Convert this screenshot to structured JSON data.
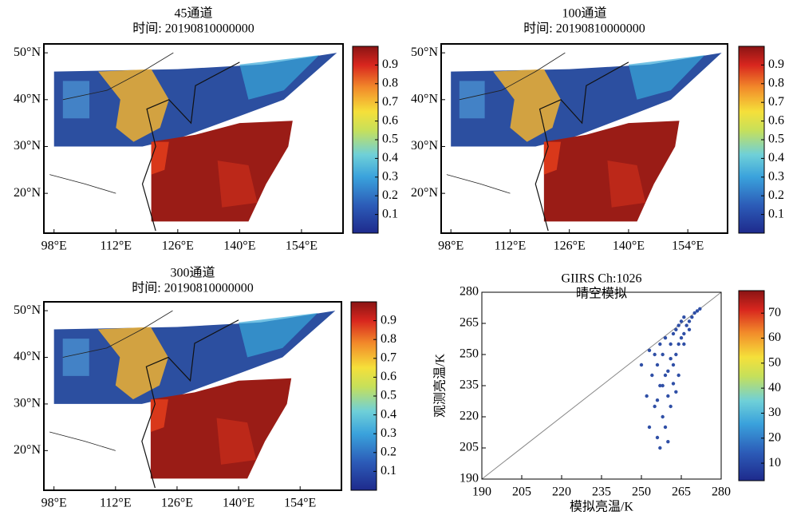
{
  "chart_data": [
    {
      "type": "map",
      "title": "45通道",
      "subtitle": "时间: 20190810000000",
      "xlim": [
        95.7,
        163.4
      ],
      "ylim": [
        11.5,
        51.9
      ],
      "xticks": [
        {
          "value": 98,
          "label": "98°E"
        },
        {
          "value": 112,
          "label": "112°E"
        },
        {
          "value": 126,
          "label": "126°E"
        },
        {
          "value": 140,
          "label": "140°E"
        },
        {
          "value": 154,
          "label": "154°E"
        }
      ],
      "yticks": [
        {
          "value": 20,
          "label": "20°N"
        },
        {
          "value": 30,
          "label": "30°N"
        },
        {
          "value": 40,
          "label": "40°N"
        },
        {
          "value": 50,
          "label": "50°N"
        }
      ],
      "clim": [
        0,
        1
      ],
      "cticks": [
        0.1,
        0.2,
        0.3,
        0.4,
        0.5,
        0.6,
        0.7,
        0.8,
        0.9
      ]
    },
    {
      "type": "map",
      "title": "100通道",
      "subtitle": "时间: 20190810000000",
      "xlim": [
        95.7,
        163.4
      ],
      "ylim": [
        11.5,
        51.9
      ],
      "xticks": [
        {
          "value": 98,
          "label": "98°E"
        },
        {
          "value": 112,
          "label": "112°E"
        },
        {
          "value": 126,
          "label": "126°E"
        },
        {
          "value": 140,
          "label": "140°E"
        },
        {
          "value": 154,
          "label": "154°E"
        }
      ],
      "yticks": [
        {
          "value": 20,
          "label": "20°N"
        },
        {
          "value": 30,
          "label": "30°N"
        },
        {
          "value": 40,
          "label": "40°N"
        },
        {
          "value": 50,
          "label": "50°N"
        }
      ],
      "clim": [
        0,
        1
      ],
      "cticks": [
        0.1,
        0.2,
        0.3,
        0.4,
        0.5,
        0.6,
        0.7,
        0.8,
        0.9
      ]
    },
    {
      "type": "map",
      "title": "300通道",
      "subtitle": "时间: 20190810000000",
      "xlim": [
        95.7,
        163.4
      ],
      "ylim": [
        11.5,
        51.9
      ],
      "xticks": [
        {
          "value": 98,
          "label": "98°E"
        },
        {
          "value": 112,
          "label": "112°E"
        },
        {
          "value": 126,
          "label": "126°E"
        },
        {
          "value": 140,
          "label": "140°E"
        },
        {
          "value": 154,
          "label": "154°E"
        }
      ],
      "yticks": [
        {
          "value": 20,
          "label": "20°N"
        },
        {
          "value": 30,
          "label": "30°N"
        },
        {
          "value": 40,
          "label": "40°N"
        },
        {
          "value": 50,
          "label": "50°N"
        }
      ],
      "clim": [
        0,
        1
      ],
      "cticks": [
        0.1,
        0.2,
        0.3,
        0.4,
        0.5,
        0.6,
        0.7,
        0.8,
        0.9
      ]
    },
    {
      "type": "scatter",
      "title": "GIIRS Ch:1026",
      "subtitle": "晴空模拟",
      "xlabel": "模拟亮温/K",
      "ylabel": "观测亮温/K",
      "color": "#2f4fa6",
      "xlim": [
        190,
        280
      ],
      "ylim": [
        190,
        280
      ],
      "xticks": [
        190,
        205,
        220,
        235,
        250,
        265,
        280
      ],
      "yticks": [
        190,
        205,
        220,
        235,
        250,
        265,
        280
      ],
      "clim": [
        3,
        79
      ],
      "cticks": [
        10,
        20,
        30,
        40,
        50,
        60,
        70
      ],
      "x": [
        252,
        253,
        254,
        255,
        256,
        256,
        257,
        257,
        258,
        258,
        259,
        259,
        260,
        260,
        261,
        261,
        262,
        262,
        263,
        263,
        264,
        264,
        265,
        265,
        266,
        266,
        267,
        268,
        269,
        270,
        271,
        272,
        255,
        257,
        259,
        261,
        258,
        260,
        262,
        264,
        250,
        253,
        256,
        263,
        266,
        268
      ],
      "y": [
        230,
        215,
        240,
        225,
        210,
        245,
        205,
        235,
        220,
        250,
        215,
        240,
        208,
        230,
        225,
        255,
        245,
        260,
        250,
        262,
        255,
        264,
        258,
        266,
        260,
        268,
        264,
        266,
        268,
        270,
        271,
        272,
        250,
        255,
        258,
        248,
        235,
        242,
        236,
        240,
        245,
        252,
        228,
        232,
        255,
        262
      ]
    }
  ]
}
